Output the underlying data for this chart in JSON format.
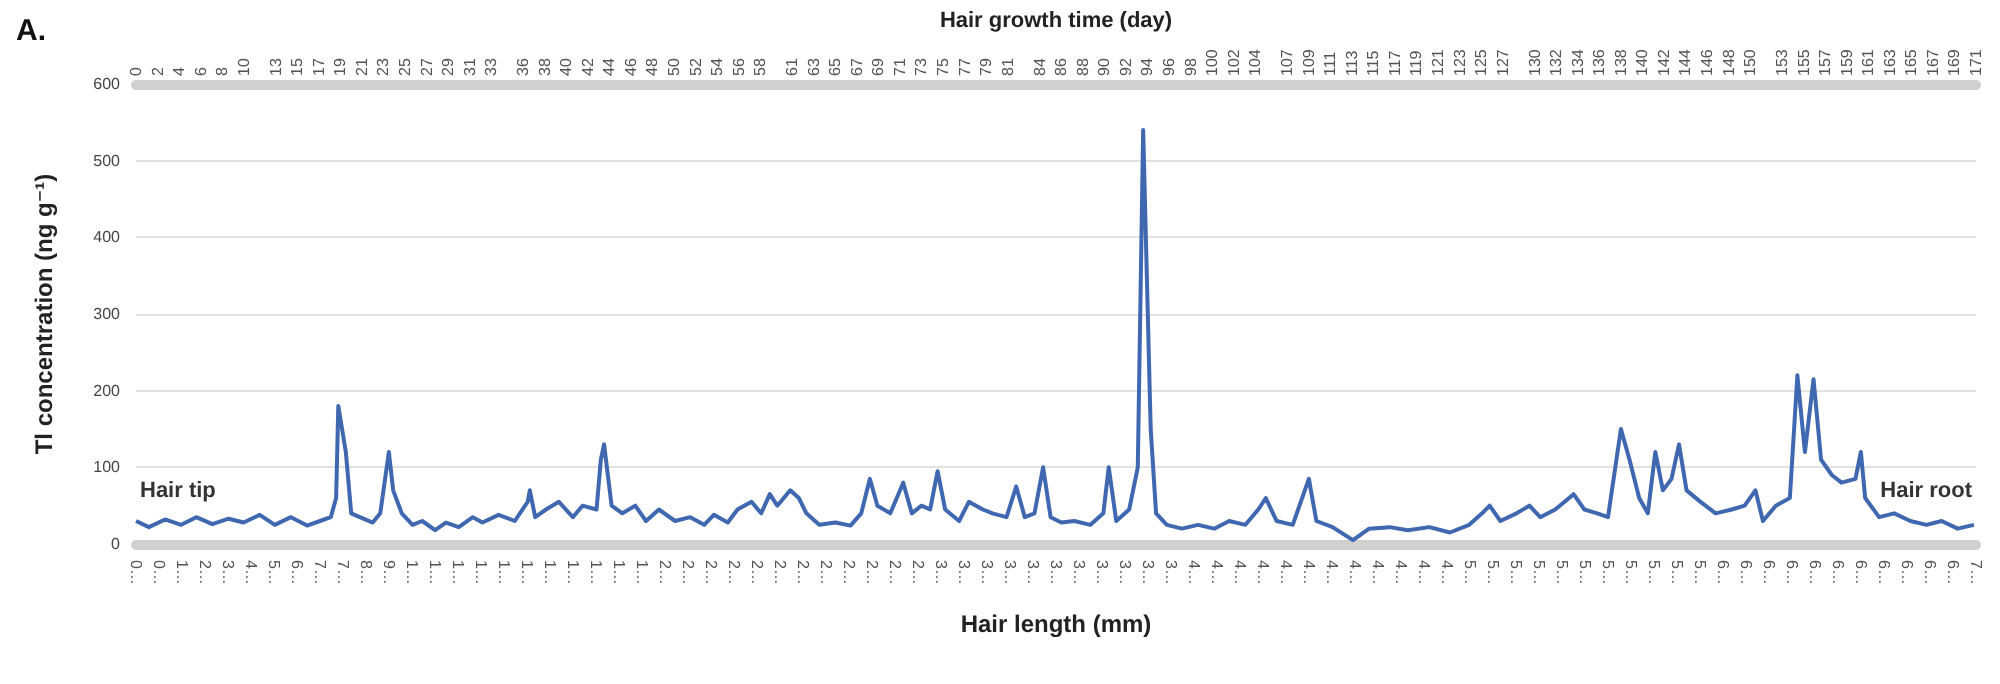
{
  "chart_data": {
    "type": "line",
    "xlabel": "Hair length (mm)",
    "x2label": "Hair growth time (day)",
    "ylabel": "Tl concentration (ng g⁻¹)",
    "annotations": [
      "A.",
      "Hair tip",
      "Hair root"
    ],
    "series": [
      {
        "color": "#3f68b0",
        "axis": "x2",
        "x": [
          0,
          1.2,
          2.7,
          4.2,
          5.6,
          7.1,
          8.6,
          10.0,
          11.5,
          12.9,
          14.4,
          15.9,
          17.1,
          18.1,
          18.6,
          18.8,
          19.5,
          20.0,
          20.8,
          22.0,
          22.7,
          23.5,
          23.9,
          24.7,
          25.7,
          26.6,
          27.8,
          28.8,
          30.0,
          31.3,
          32.2,
          33.7,
          35.2,
          36.4,
          36.6,
          37.1,
          38.1,
          39.3,
          40.6,
          41.5,
          42.8,
          43.2,
          43.5,
          44.2,
          45.2,
          46.4,
          47.4,
          48.6,
          50.1,
          51.5,
          52.8,
          53.7,
          55.0,
          55.9,
          57.2,
          58.1,
          58.9,
          59.6,
          60.8,
          61.6,
          62.3,
          63.5,
          65.0,
          66.4,
          67.4,
          68.2,
          68.9,
          70.1,
          71.3,
          72.1,
          73.0,
          73.8,
          74.5,
          75.2,
          76.5,
          77.4,
          78.7,
          79.6,
          80.9,
          81.8,
          82.6,
          83.5,
          84.3,
          85.0,
          86.0,
          87.2,
          88.7,
          89.9,
          90.4,
          91.1,
          92.3,
          93.1,
          93.6,
          94.3,
          94.8,
          95.8,
          97.2,
          98.7,
          100.2,
          101.6,
          103.1,
          104.3,
          105.0,
          106.0,
          107.5,
          109.0,
          109.7,
          111.2,
          113.1,
          114.6,
          116.5,
          118.2,
          120.2,
          122.1,
          123.9,
          125.1,
          125.8,
          126.8,
          128.3,
          129.5,
          130.5,
          131.9,
          133.6,
          134.6,
          135.8,
          136.8,
          138.0,
          138.8,
          139.7,
          140.5,
          141.2,
          141.9,
          142.7,
          143.4,
          144.1,
          145.4,
          146.8,
          148.3,
          149.5,
          150.5,
          151.2,
          152.4,
          153.7,
          154.4,
          155.1,
          155.9,
          156.6,
          157.6,
          158.5,
          159.8,
          160.3,
          160.7,
          162.0,
          163.4,
          164.9,
          166.4,
          167.8,
          169.3,
          170.8
        ],
        "values": [
          30,
          22,
          32,
          25,
          35,
          26,
          33,
          28,
          38,
          25,
          35,
          24,
          30,
          35,
          60,
          180,
          120,
          40,
          35,
          28,
          40,
          120,
          70,
          40,
          25,
          30,
          18,
          28,
          22,
          35,
          28,
          38,
          30,
          55,
          70,
          35,
          45,
          55,
          35,
          50,
          45,
          110,
          130,
          50,
          40,
          50,
          30,
          45,
          30,
          35,
          25,
          38,
          28,
          45,
          55,
          40,
          65,
          50,
          70,
          60,
          40,
          25,
          28,
          24,
          40,
          85,
          50,
          40,
          80,
          40,
          50,
          45,
          95,
          45,
          30,
          55,
          45,
          40,
          35,
          75,
          35,
          40,
          100,
          35,
          28,
          30,
          25,
          40,
          100,
          30,
          45,
          100,
          540,
          150,
          40,
          25,
          20,
          25,
          20,
          30,
          25,
          45,
          60,
          30,
          25,
          85,
          30,
          22,
          5,
          20,
          22,
          18,
          22,
          15,
          25,
          40,
          50,
          30,
          40,
          50,
          35,
          45,
          65,
          45,
          40,
          35,
          150,
          110,
          60,
          40,
          120,
          70,
          85,
          130,
          70,
          55,
          40,
          45,
          50,
          70,
          30,
          50,
          60,
          220,
          120,
          215,
          110,
          90,
          80,
          85,
          120,
          60,
          35,
          40,
          30,
          25,
          30,
          20,
          25
        ]
      }
    ],
    "categories": [
      "0…",
      "0…",
      "1…",
      "2…",
      "3…",
      "4…",
      "5…",
      "6…",
      "7…",
      "7…",
      "8…",
      "9…",
      "1…",
      "1…",
      "1…",
      "1…",
      "1…",
      "1…",
      "1…",
      "1…",
      "1…",
      "1…",
      "1…",
      "2…",
      "2…",
      "2…",
      "2…",
      "2…",
      "2…",
      "2…",
      "2…",
      "2…",
      "2…",
      "2…",
      "2…",
      "3…",
      "3…",
      "3…",
      "3…",
      "3…",
      "3…",
      "3…",
      "3…",
      "3…",
      "3…",
      "3…",
      "4…",
      "4…",
      "4…",
      "4…",
      "4…",
      "4…",
      "4…",
      "4…",
      "4…",
      "4…",
      "4…",
      "4…",
      "5…",
      "5…",
      "5…",
      "5…",
      "5…",
      "5…",
      "5…",
      "5…",
      "5…",
      "5…",
      "5…",
      "6…",
      "6…",
      "6…",
      "6…",
      "6…",
      "6…",
      "6…",
      "6…",
      "6…",
      "6…",
      "6…",
      "7…"
    ],
    "x2lim": [
      0,
      171
    ],
    "x2ticks": [
      0,
      2,
      4,
      6,
      8,
      10,
      13,
      15,
      17,
      19,
      21,
      23,
      25,
      27,
      29,
      31,
      33,
      36,
      38,
      40,
      42,
      44,
      46,
      48,
      50,
      52,
      54,
      56,
      58,
      61,
      63,
      65,
      67,
      69,
      71,
      73,
      75,
      77,
      79,
      81,
      84,
      86,
      88,
      90,
      92,
      94,
      96,
      98,
      100,
      102,
      104,
      107,
      109,
      111,
      113,
      115,
      117,
      119,
      121,
      123,
      125,
      127,
      130,
      132,
      134,
      136,
      138,
      140,
      142,
      144,
      146,
      148,
      150,
      153,
      155,
      157,
      159,
      161,
      163,
      165,
      167,
      169,
      171
    ],
    "ylim": [
      0,
      600
    ],
    "yticks": [
      0,
      100,
      200,
      300,
      400,
      500,
      600
    ],
    "grid": "y",
    "marker": "none",
    "line_style": "solid"
  }
}
